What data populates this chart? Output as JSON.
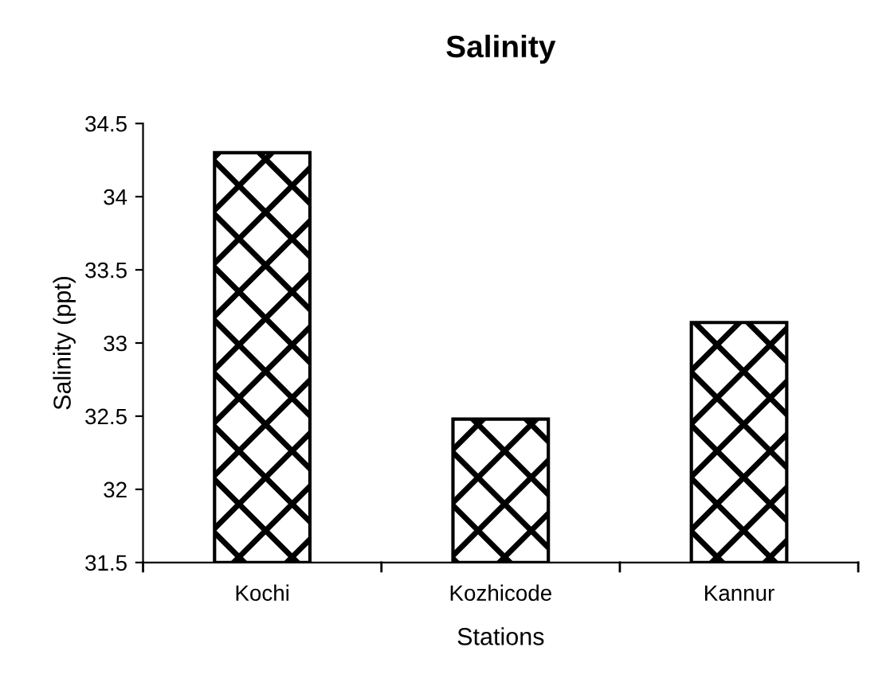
{
  "chart_data": {
    "type": "bar",
    "title": "Salinity",
    "xlabel": "Stations",
    "ylabel": "Salinity (ppt)",
    "categories": [
      "Kochi",
      "Kozhicode",
      "Kannur"
    ],
    "values": [
      34.3,
      32.48,
      33.14
    ],
    "color": "#000000",
    "ylim": [
      31.5,
      34.5
    ],
    "yticks": [
      31.5,
      32,
      32.5,
      33,
      33.5,
      34,
      34.5
    ],
    "grid": false,
    "legend": false
  }
}
